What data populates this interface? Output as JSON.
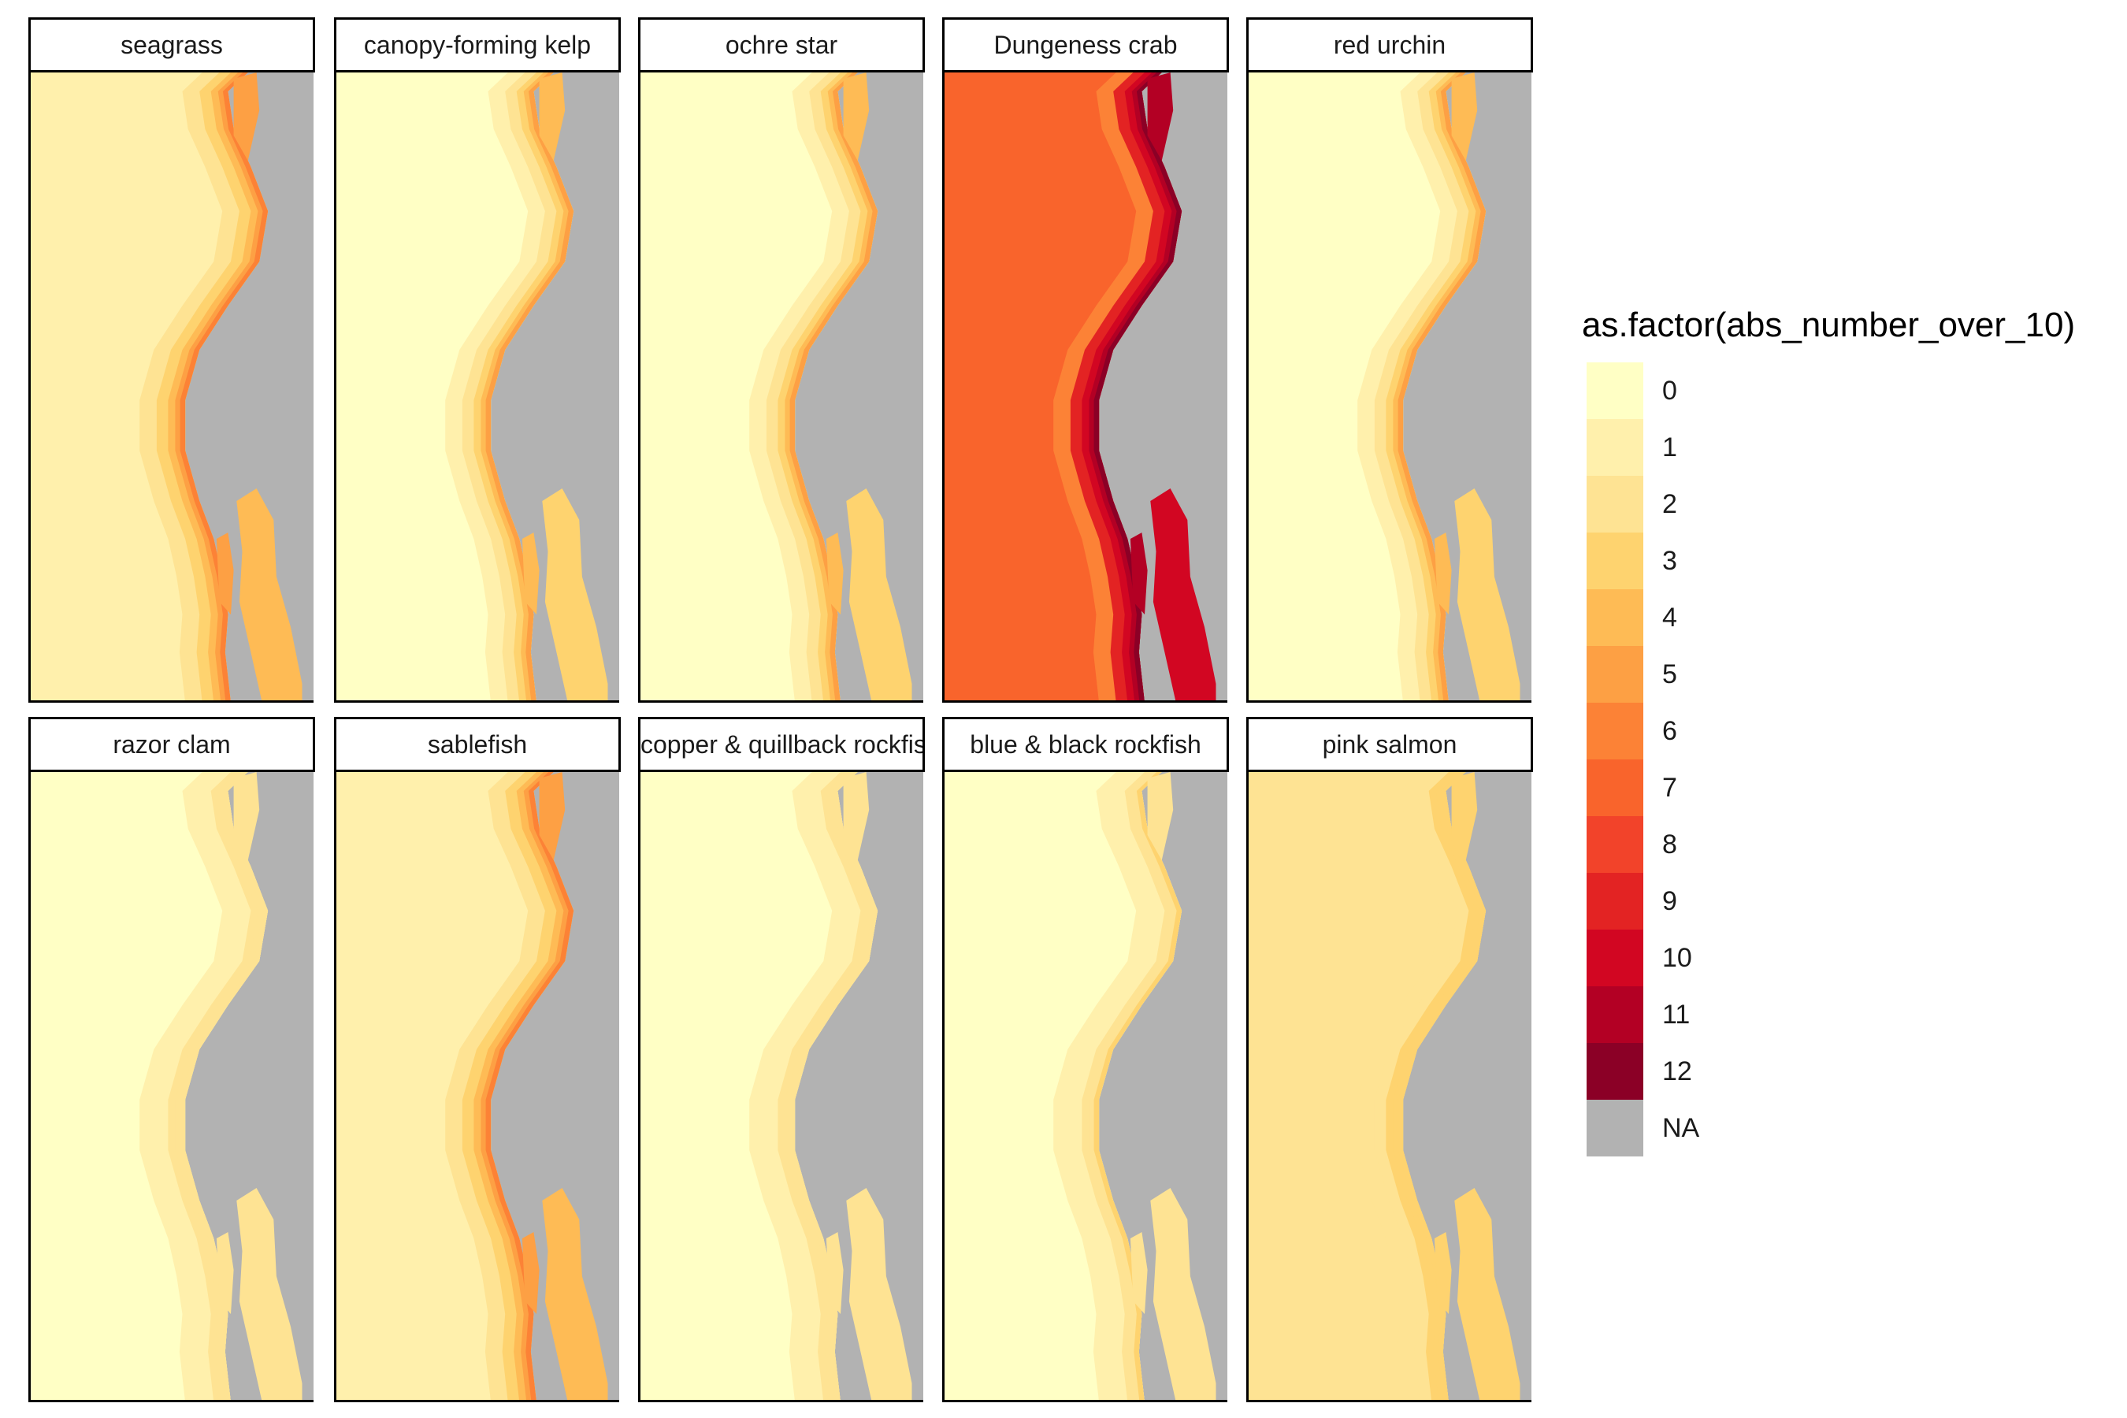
{
  "panels": [
    {
      "title": "seagrass",
      "base": 1,
      "bands": [
        2,
        3,
        4,
        5,
        6
      ]
    },
    {
      "title": "canopy-forming kelp",
      "base": 0,
      "bands": [
        1,
        2,
        3,
        4,
        5
      ]
    },
    {
      "title": "ochre star",
      "base": 0,
      "bands": [
        1,
        2,
        3,
        4,
        5
      ]
    },
    {
      "title": "Dungeness crab",
      "base": 7,
      "bands": [
        6,
        9,
        10,
        11,
        12
      ]
    },
    {
      "title": "red urchin",
      "base": 0,
      "bands": [
        1,
        2,
        3,
        4,
        5
      ]
    },
    {
      "title": "razor clam",
      "base": 0,
      "bands": [
        1,
        1,
        2,
        2,
        2
      ]
    },
    {
      "title": "sablefish",
      "base": 1,
      "bands": [
        2,
        3,
        4,
        5,
        6
      ]
    },
    {
      "title": "copper & quillback rockfish",
      "base": 0,
      "bands": [
        1,
        1,
        2,
        2,
        2
      ]
    },
    {
      "title": "blue & black rockfish",
      "base": 0,
      "bands": [
        1,
        1,
        2,
        2,
        3
      ]
    },
    {
      "title": "pink salmon",
      "base": 2,
      "bands": [
        2,
        2,
        3,
        3,
        3
      ]
    }
  ],
  "legend": {
    "title": "as.factor(abs_number_over_10)",
    "levels": [
      "0",
      "1",
      "2",
      "3",
      "4",
      "5",
      "6",
      "7",
      "8",
      "9",
      "10",
      "11",
      "12",
      "NA"
    ],
    "colors": [
      "#ffffc5",
      "#fff0ac",
      "#fee393",
      "#fed36f",
      "#febb55",
      "#fda044",
      "#fc8236",
      "#f9642c",
      "#f2432a",
      "#e32323",
      "#d20622",
      "#b30024",
      "#8b0026",
      "#b2b2b2"
    ]
  }
}
